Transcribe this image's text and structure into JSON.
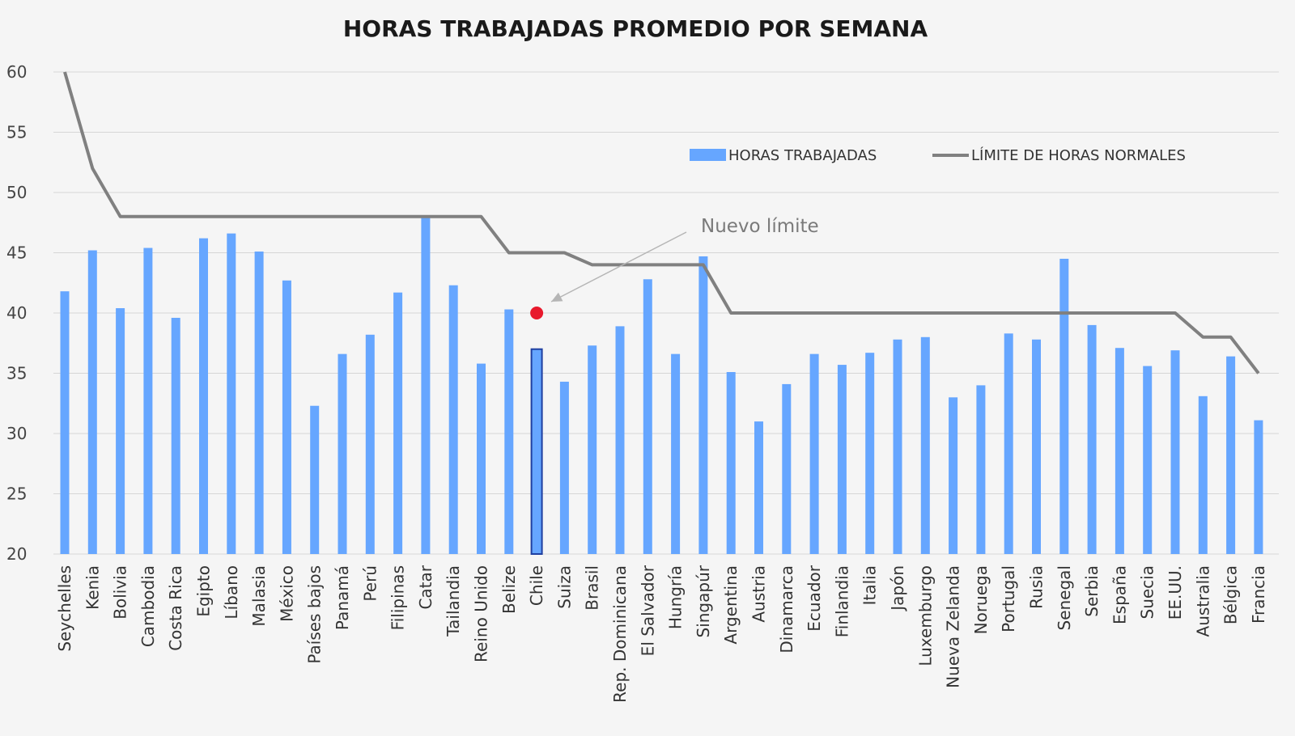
{
  "chart_data": {
    "type": "bar",
    "title": "HORAS TRABAJADAS PROMEDIO POR SEMANA",
    "xlabel": "",
    "ylabel": "",
    "ylim": [
      20,
      60
    ],
    "yticks": [
      20,
      25,
      30,
      35,
      40,
      45,
      50,
      55,
      60
    ],
    "grid": true,
    "legend_position": "top-right",
    "colors": {
      "bars": "#66a6ff",
      "limit_line": "#808080",
      "highlight_border": "#1f3fa0",
      "marker": "#e8192c",
      "annotation_arrow": "#b5b5b5"
    },
    "categories": [
      "Seychelles",
      "Kenia",
      "Bolivia",
      "Cambodia",
      "Costa Rica",
      "Egipto",
      "Líbano",
      "Malasia",
      "México",
      "Países bajos",
      "Panamá",
      "Perú",
      "Filipinas",
      "Catar",
      "Tailandia",
      "Reino Unido",
      "Belize",
      "Chile",
      "Suiza",
      "Brasil",
      "Rep. Dominicana",
      "El Salvador",
      "Hungría",
      "Singapúr",
      "Argentina",
      "Austria",
      "Dinamarca",
      "Ecuador",
      "Finlandia",
      "Italia",
      "Japón",
      "Luxemburgo",
      "Nueva Zelanda",
      "Noruega",
      "Portugal",
      "Rusia",
      "Senegal",
      "Serbia",
      "España",
      "Suecia",
      "EE.UU.",
      "Australia",
      "Bélgica",
      "Francia"
    ],
    "series": [
      {
        "name": "HORAS TRABAJADAS",
        "kind": "bar",
        "values": [
          41.8,
          45.2,
          40.4,
          45.4,
          39.6,
          46.2,
          46.6,
          45.1,
          42.7,
          32.3,
          36.6,
          38.2,
          41.7,
          48.0,
          42.3,
          35.8,
          40.3,
          37.0,
          34.3,
          37.3,
          38.9,
          42.8,
          36.6,
          44.7,
          35.1,
          31.0,
          34.1,
          36.6,
          35.7,
          36.7,
          37.8,
          38.0,
          33.0,
          34.0,
          38.3,
          37.8,
          44.5,
          39.0,
          37.1,
          35.6,
          36.9,
          33.1,
          36.4,
          31.1
        ]
      },
      {
        "name": "LÍMITE DE HORAS NORMALES",
        "kind": "line",
        "values": [
          60,
          52,
          48,
          48,
          48,
          48,
          48,
          48,
          48,
          48,
          48,
          48,
          48,
          48,
          48,
          48,
          45,
          45,
          45,
          44,
          44,
          44,
          44,
          44,
          40,
          40,
          40,
          40,
          40,
          40,
          40,
          40,
          40,
          40,
          40,
          40,
          40,
          40,
          40,
          40,
          40,
          38,
          38,
          35
        ]
      }
    ],
    "highlight": {
      "category": "Chile"
    },
    "annotation": {
      "text": "Nuevo límite",
      "category": "Chile",
      "value": 40
    }
  }
}
